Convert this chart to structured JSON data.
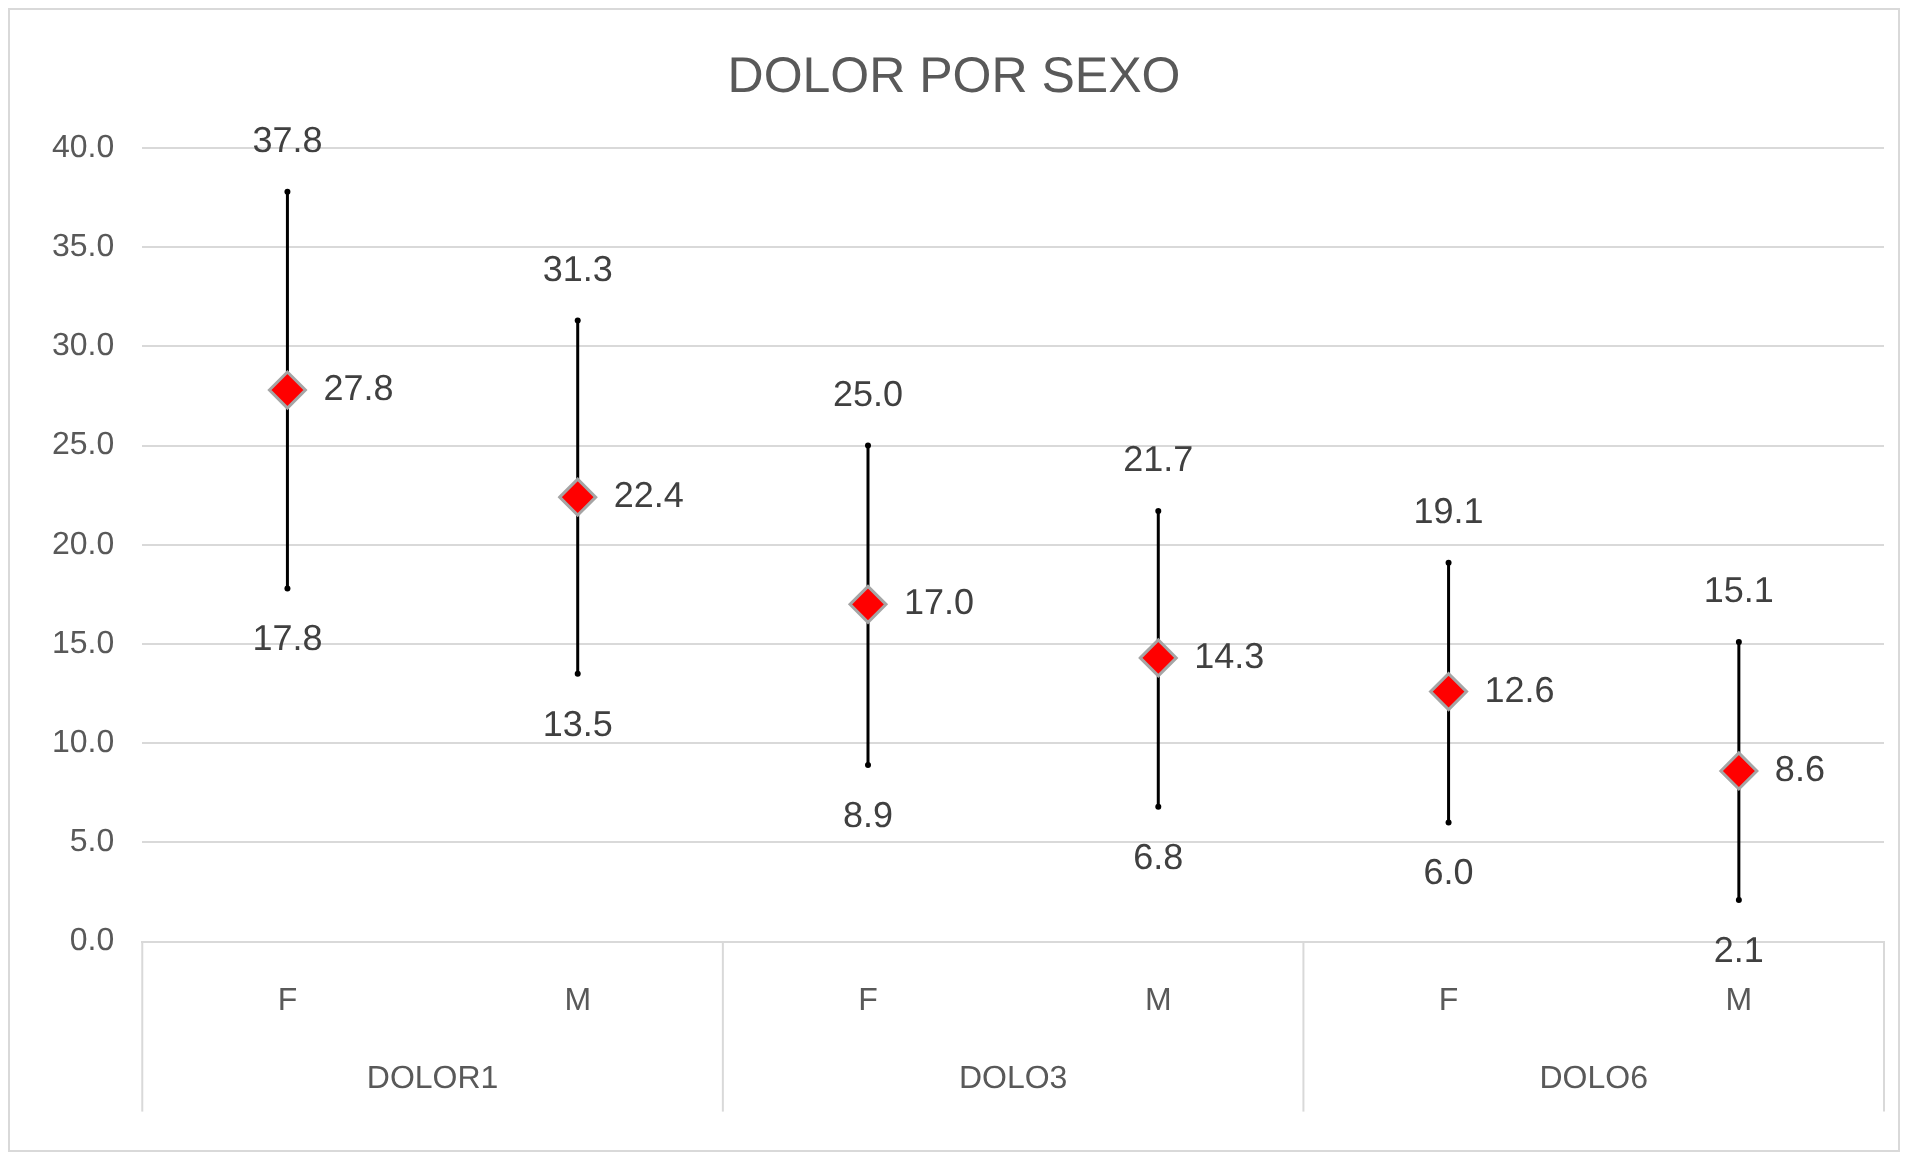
{
  "chart_data": {
    "type": "scatter",
    "title": "DOLOR POR SEXO",
    "categories": [
      "F",
      "M",
      "F",
      "M",
      "F",
      "M"
    ],
    "series": [
      {
        "color": "#000000",
        "marker": "circle",
        "values": [
          37.8,
          31.3,
          25.0,
          21.7,
          19.1,
          15.1
        ],
        "value_labels": [
          "37.8",
          "31.3",
          "25.0",
          "21.7",
          "19.1",
          "15.1"
        ]
      },
      {
        "color": "#000000",
        "marker": "circle",
        "values": [
          17.8,
          13.5,
          8.9,
          6.8,
          6.0,
          2.1
        ],
        "value_labels": [
          "17.8",
          "13.5",
          "8.9",
          "6.8",
          "6.0",
          "2.1"
        ]
      },
      {
        "color": "#ff0000",
        "values": [
          27.8,
          22.4,
          17.0,
          14.3,
          12.6,
          8.6
        ],
        "value_labels": [
          "27.8",
          "22.4",
          "17.0",
          "14.3",
          "12.6",
          "8.6"
        ]
      }
    ],
    "ylim": [
      0,
      40
    ],
    "yticks": [
      {
        "value": 0,
        "label": "0.0"
      },
      {
        "value": 5,
        "label": "5.0"
      },
      {
        "value": 10,
        "label": "10.0"
      },
      {
        "value": 15,
        "label": "15.0"
      },
      {
        "value": 20,
        "label": "20.0"
      },
      {
        "value": 25,
        "label": "25.0"
      },
      {
        "value": 30,
        "label": "30.0"
      },
      {
        "value": 35,
        "label": "35.0"
      },
      {
        "value": 40,
        "label": "40.0"
      }
    ],
    "annotations": [
      "DOLOR1",
      "DOLO3",
      "DOLO6"
    ],
    "grid": "y",
    "legend": false,
    "marker": "diamond"
  }
}
